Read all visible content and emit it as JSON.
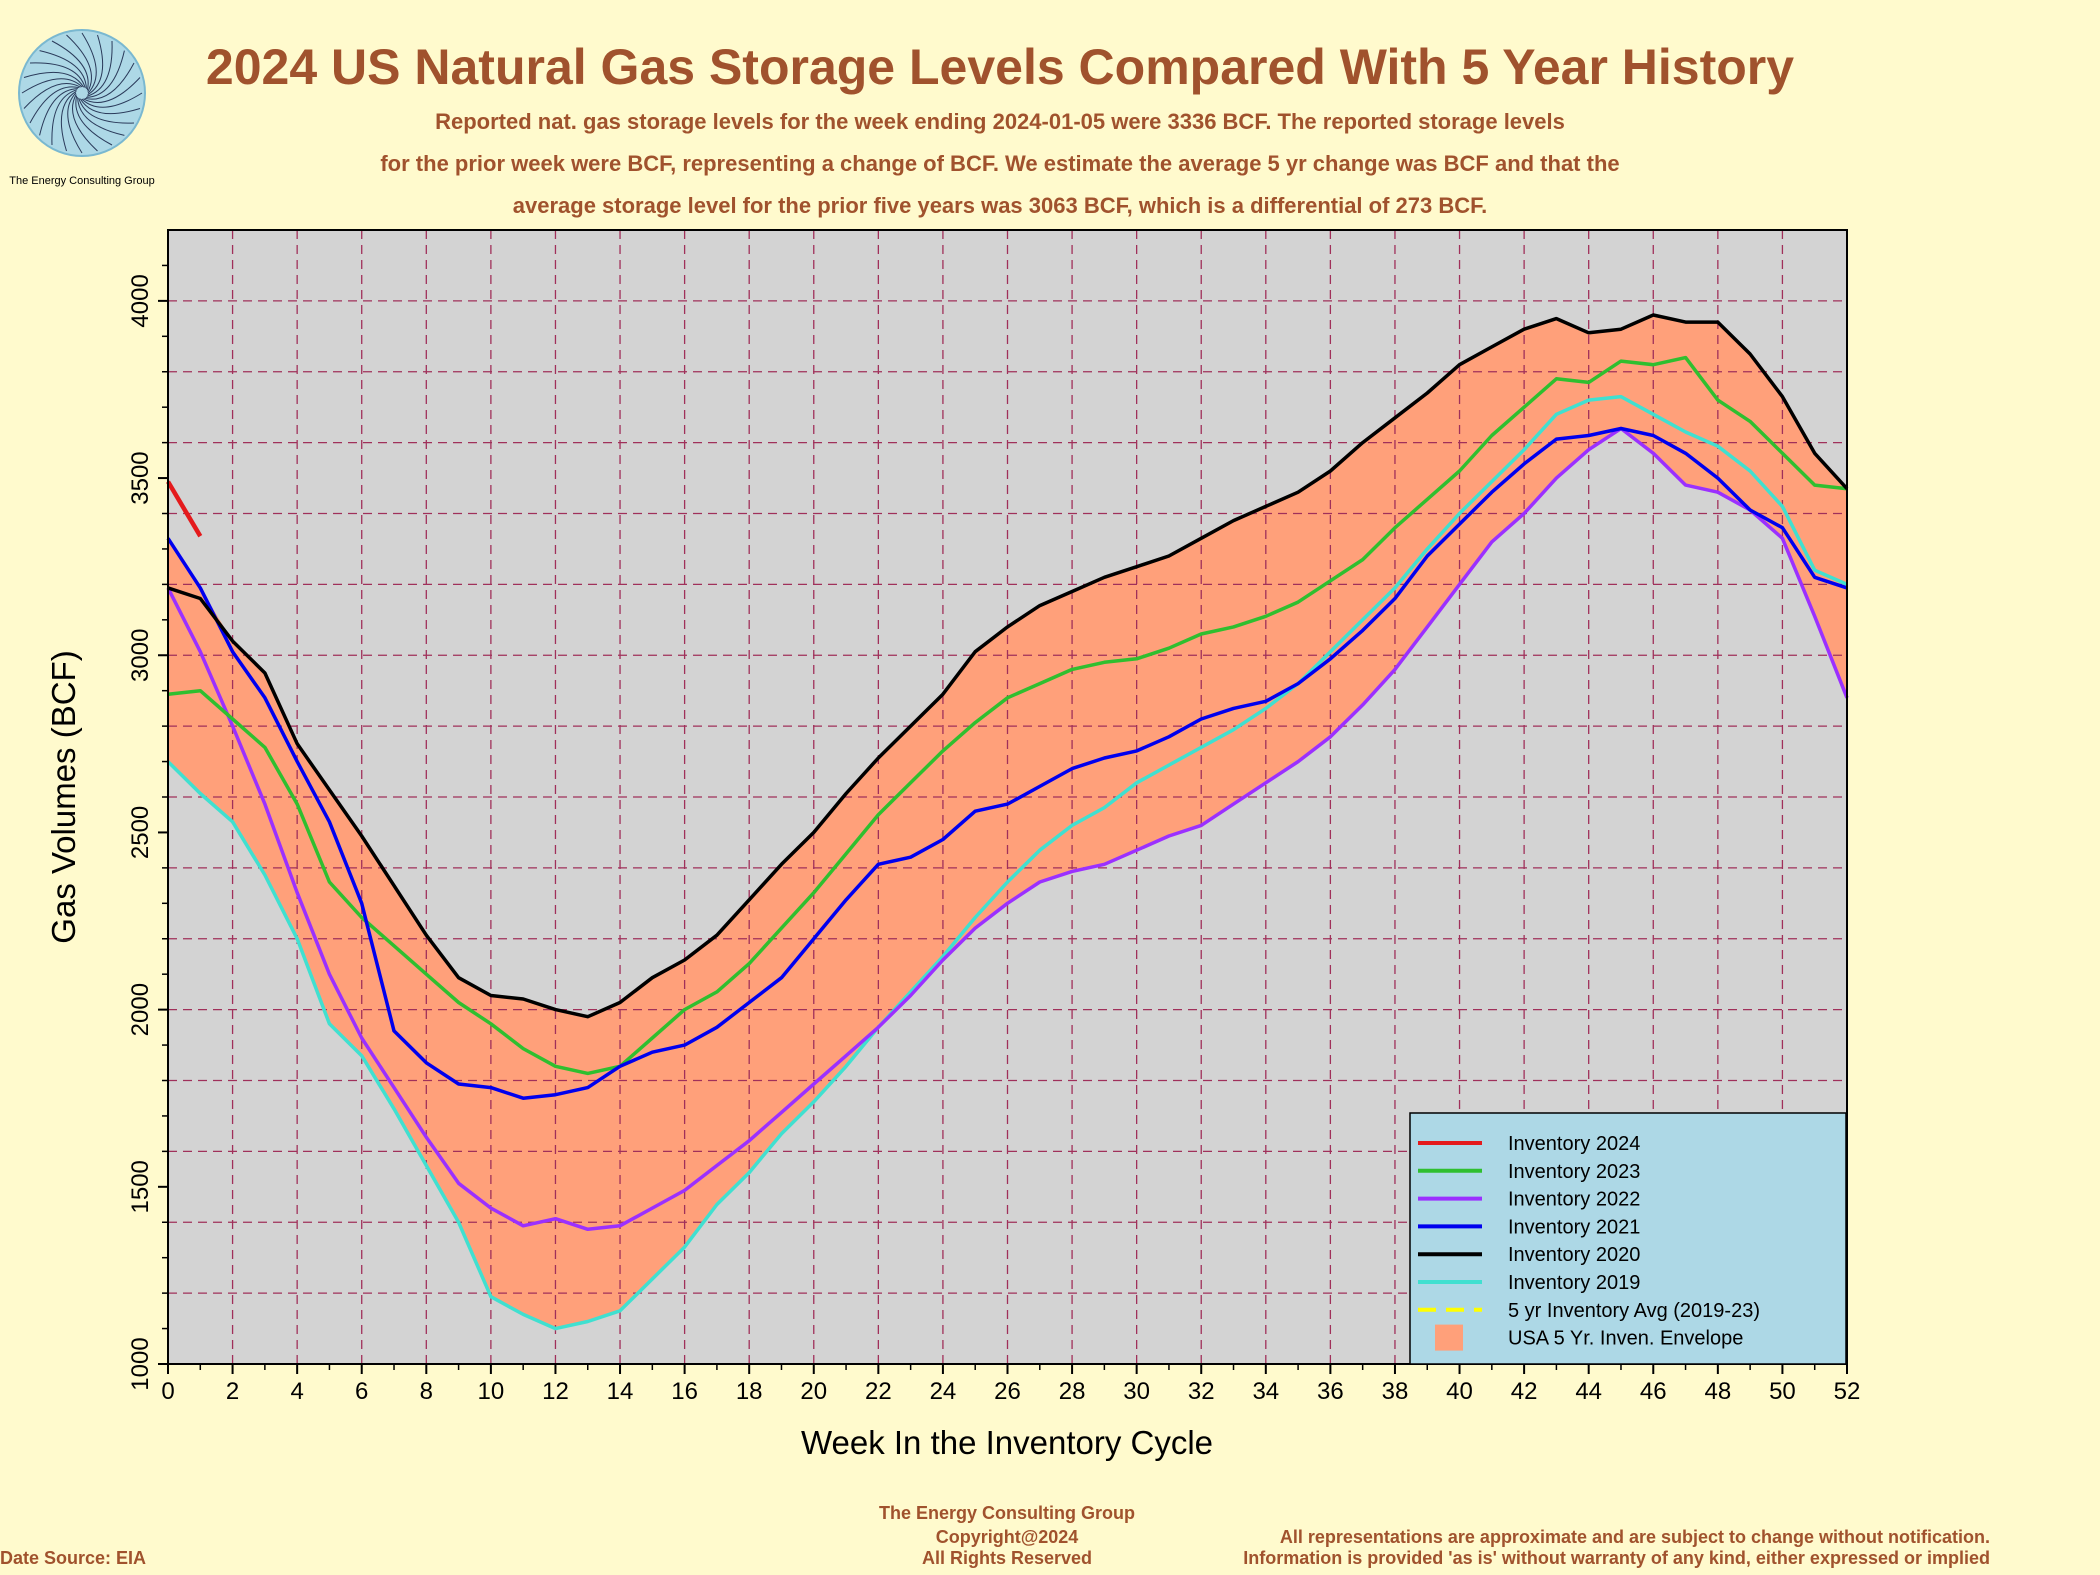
{
  "header": {
    "title": "2024 US Natural Gas Storage Levels Compared With 5 Year History",
    "subtitle_lines": [
      "Reported nat. gas storage levels for the week ending 2024-01-05 were 3336 BCF.  The reported storage levels",
      "for the prior week were  BCF, representing a change of  BCF.  We estimate the average 5 yr change was  BCF and that the",
      "average storage level for the prior five years was 3063 BCF, which is a differential of 273 BCF."
    ]
  },
  "logo": {
    "caption": "The Energy Consulting Group"
  },
  "footer": {
    "company": "The Energy Consulting Group",
    "copyright": "Copyright@2024",
    "rights": "All Rights Reserved",
    "source": "Date Source: EIA",
    "disclaimer1": "All representations are approximate and are subject to change without notification.",
    "disclaimer2": "Information is provided 'as is' without warranty of any kind, either expressed or implied"
  },
  "chart_data": {
    "type": "line",
    "xlabel": "Week In the Inventory Cycle",
    "ylabel": "Gas Volumes (BCF)",
    "xlim": [
      0,
      52
    ],
    "ylim": [
      1000,
      4200
    ],
    "xticks": [
      "0",
      "2",
      "4",
      "6",
      "8",
      "10",
      "12",
      "14",
      "16",
      "18",
      "20",
      "22",
      "24",
      "26",
      "28",
      "30",
      "32",
      "34",
      "36",
      "38",
      "40",
      "42",
      "44",
      "46",
      "48",
      "50",
      "52"
    ],
    "yticks": [
      "1000",
      "1500",
      "2000",
      "2500",
      "3000",
      "3500",
      "4000"
    ],
    "grid": true,
    "legend_position": "bottom-right",
    "colors": {
      "background": "#fffacd",
      "plot_bg": "#d3d3d3",
      "envelope": "#ffa07a",
      "legend_bg": "#add8e6",
      "grid": "#a0305a"
    },
    "legend": [
      {
        "label": "Inventory 2024",
        "color": "#e41a1c",
        "style": "line"
      },
      {
        "label": "Inventory 2023",
        "color": "#2fbf2f",
        "style": "line"
      },
      {
        "label": "Inventory 2022",
        "color": "#9b30ff",
        "style": "line"
      },
      {
        "label": "Inventory 2021",
        "color": "#0000ee",
        "style": "line"
      },
      {
        "label": "Inventory 2020",
        "color": "#000000",
        "style": "line"
      },
      {
        "label": "Inventory 2019",
        "color": "#40e0d0",
        "style": "line"
      },
      {
        "label": "5 yr Inventory Avg (2019-23)",
        "color": "#ffff00",
        "style": "dash"
      },
      {
        "label": "USA 5 Yr. Inven. Envelope",
        "color": "#ffa07a",
        "style": "box"
      }
    ],
    "series": [
      {
        "name": "Inventory 2024",
        "color": "#e41a1c",
        "x": [
          0,
          1
        ],
        "y": [
          3490,
          3336
        ]
      },
      {
        "name": "Inventory 2023",
        "color": "#2fbf2f",
        "y": [
          2890,
          2900,
          2820,
          2740,
          2580,
          2360,
          2260,
          2180,
          2100,
          2020,
          1960,
          1890,
          1840,
          1820,
          1840,
          1920,
          2000,
          2050,
          2130,
          2230,
          2330,
          2440,
          2550,
          2640,
          2730,
          2810,
          2880,
          2920,
          2960,
          2980,
          2990,
          3020,
          3060,
          3080,
          3110,
          3150,
          3210,
          3270,
          3360,
          3440,
          3520,
          3620,
          3700,
          3780,
          3770,
          3830,
          3820,
          3840,
          3720,
          3660,
          3570,
          3480,
          3470
        ]
      },
      {
        "name": "Inventory 2022",
        "color": "#9b30ff",
        "y": [
          3190,
          3010,
          2800,
          2580,
          2330,
          2100,
          1920,
          1780,
          1640,
          1510,
          1440,
          1390,
          1410,
          1380,
          1390,
          1440,
          1490,
          1560,
          1630,
          1710,
          1790,
          1870,
          1950,
          2040,
          2140,
          2230,
          2300,
          2360,
          2390,
          2410,
          2450,
          2490,
          2520,
          2580,
          2640,
          2700,
          2770,
          2860,
          2960,
          3080,
          3200,
          3320,
          3400,
          3500,
          3580,
          3640,
          3570,
          3480,
          3460,
          3410,
          3330,
          3110,
          2880
        ]
      },
      {
        "name": "Inventory 2021",
        "color": "#0000ee",
        "y": [
          3330,
          3190,
          3010,
          2880,
          2700,
          2530,
          2300,
          1940,
          1850,
          1790,
          1780,
          1750,
          1760,
          1780,
          1840,
          1880,
          1900,
          1950,
          2020,
          2090,
          2200,
          2310,
          2410,
          2430,
          2480,
          2560,
          2580,
          2630,
          2680,
          2710,
          2730,
          2770,
          2820,
          2850,
          2870,
          2920,
          2990,
          3070,
          3160,
          3280,
          3370,
          3460,
          3540,
          3610,
          3620,
          3640,
          3620,
          3570,
          3500,
          3410,
          3360,
          3220,
          3190
        ]
      },
      {
        "name": "Inventory 2020",
        "color": "#000000",
        "y": [
          3190,
          3160,
          3040,
          2950,
          2750,
          2620,
          2490,
          2350,
          2210,
          2090,
          2040,
          2030,
          2000,
          1980,
          2020,
          2090,
          2140,
          2210,
          2310,
          2410,
          2500,
          2610,
          2710,
          2800,
          2890,
          3010,
          3080,
          3140,
          3180,
          3220,
          3250,
          3280,
          3330,
          3380,
          3420,
          3460,
          3520,
          3600,
          3670,
          3740,
          3820,
          3870,
          3920,
          3950,
          3910,
          3920,
          3960,
          3940,
          3940,
          3850,
          3730,
          3570,
          3470
        ]
      },
      {
        "name": "Inventory 2019",
        "color": "#40e0d0",
        "y": [
          2700,
          2610,
          2530,
          2380,
          2200,
          1960,
          1870,
          1720,
          1560,
          1400,
          1190,
          1140,
          1100,
          1120,
          1150,
          1240,
          1330,
          1450,
          1540,
          1650,
          1740,
          1840,
          1950,
          2050,
          2150,
          2260,
          2360,
          2450,
          2520,
          2570,
          2640,
          2690,
          2740,
          2790,
          2850,
          2920,
          3010,
          3100,
          3190,
          3300,
          3400,
          3490,
          3580,
          3680,
          3720,
          3730,
          3680,
          3630,
          3590,
          3520,
          3420,
          3240,
          3200
        ]
      }
    ]
  }
}
